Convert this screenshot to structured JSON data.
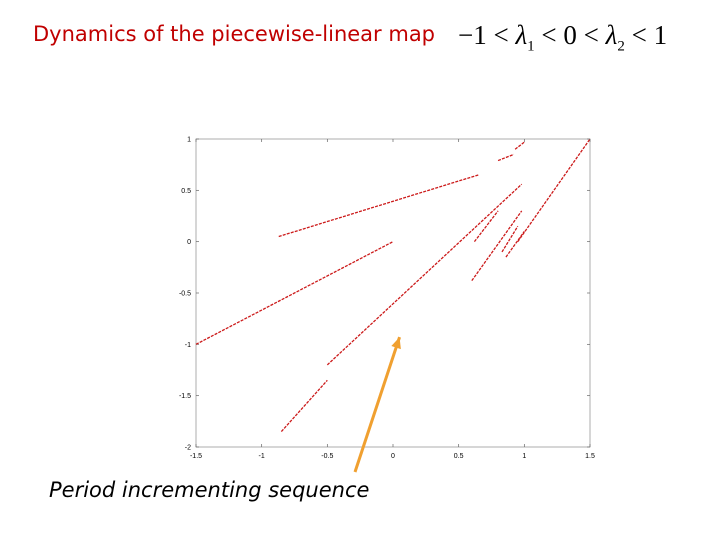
{
  "title": "Dynamics of the piecewise-linear map",
  "formula": {
    "p1": "−1 < ",
    "l1": "λ",
    "s1": "1",
    "p2": " < 0 < ",
    "l2": "λ",
    "s2": "2",
    "p3": " < 1"
  },
  "caption": "Period incrementing sequence",
  "colors": {
    "series": "#cc1a1a",
    "arrow": "#f0a030",
    "axes": "#000000"
  },
  "chart_data": {
    "type": "scatter",
    "title": "",
    "xlabel": "",
    "ylabel": "",
    "xlim": [
      -1.5,
      1.5
    ],
    "ylim": [
      -2,
      1
    ],
    "grid": false,
    "x_ticks": [
      "-1.5",
      "-1",
      "-0.5",
      "0",
      "0.5",
      "1",
      "1.5"
    ],
    "y_ticks": [
      "1",
      "0.5",
      "0",
      "-0.5",
      "-1",
      "-1.5",
      "-2"
    ],
    "x_tick_values": [
      -1.5,
      -1,
      -0.5,
      0,
      0.5,
      1,
      1.5
    ],
    "y_tick_values": [
      1,
      0.5,
      0,
      -0.5,
      -1,
      -1.5,
      -2
    ],
    "series": [
      {
        "segments": [
          [
            [
              -1.5,
              -1.0
            ],
            [
              0.0,
              0.0
            ]
          ],
          [
            [
              -0.87,
              0.05
            ],
            [
              0.65,
              0.65
            ]
          ],
          [
            [
              -0.85,
              -1.85
            ],
            [
              -0.5,
              -1.35
            ]
          ],
          [
            [
              -0.5,
              -1.2
            ],
            [
              0.98,
              0.56
            ]
          ],
          [
            [
              0.8,
              0.79
            ],
            [
              0.92,
              0.85
            ]
          ],
          [
            [
              0.93,
              0.9
            ],
            [
              1.0,
              0.97
            ]
          ],
          [
            [
              0.62,
              0.0
            ],
            [
              0.8,
              0.3
            ]
          ],
          [
            [
              0.6,
              -0.38
            ],
            [
              0.98,
              0.3
            ]
          ],
          [
            [
              0.83,
              -0.1
            ],
            [
              0.95,
              0.15
            ]
          ],
          [
            [
              0.86,
              -0.15
            ],
            [
              1.0,
              0.1
            ]
          ],
          [
            [
              0.95,
              0.0
            ],
            [
              1.5,
              1.0
            ]
          ]
        ]
      }
    ],
    "annotation": {
      "text": "Period incrementing sequence",
      "points_to": [
        0.05,
        -0.93
      ]
    }
  }
}
